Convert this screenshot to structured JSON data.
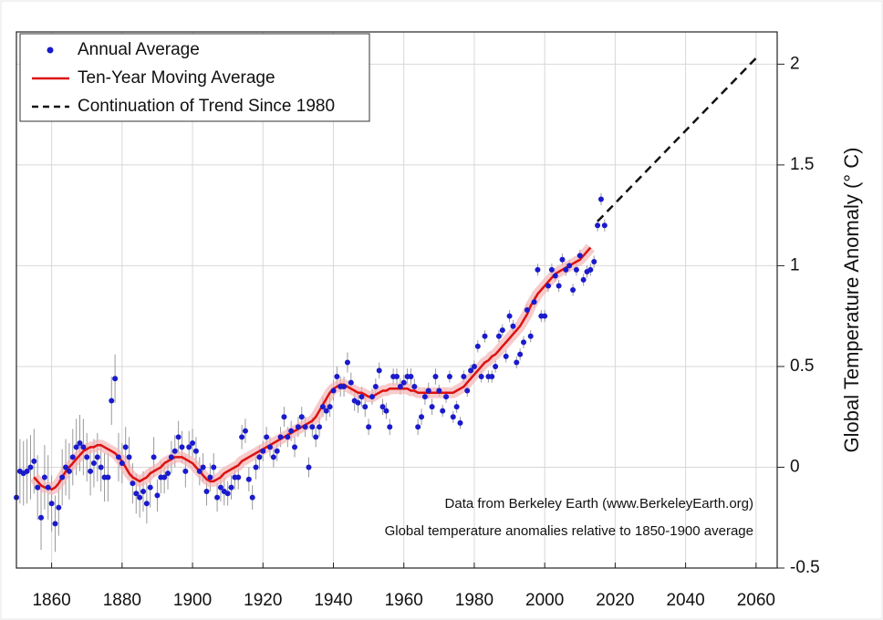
{
  "chart_data": {
    "type": "scatter",
    "title_note": null,
    "annotations": [
      "Data from Berkeley Earth (www.BerkeleyEarth.org)",
      "Global temperature anomalies relative to 1850-1900 average"
    ],
    "y_label": "Global Temperature Anomaly (° C)",
    "xlim": [
      1850,
      2066
    ],
    "ylim": [
      -0.5,
      2.16
    ],
    "xticks": [
      1860,
      1880,
      1900,
      1920,
      1940,
      1960,
      1980,
      2000,
      2020,
      2040,
      2060
    ],
    "yticks": [
      -0.5,
      0,
      0.5,
      1,
      1.5,
      2
    ],
    "grid": true,
    "legend": "upper left",
    "x": [
      1850,
      1851,
      1852,
      1853,
      1854,
      1855,
      1856,
      1857,
      1858,
      1859,
      1860,
      1861,
      1862,
      1863,
      1864,
      1865,
      1866,
      1867,
      1868,
      1869,
      1870,
      1871,
      1872,
      1873,
      1874,
      1875,
      1876,
      1877,
      1878,
      1879,
      1880,
      1881,
      1882,
      1883,
      1884,
      1885,
      1886,
      1887,
      1888,
      1889,
      1890,
      1891,
      1892,
      1893,
      1894,
      1895,
      1896,
      1897,
      1898,
      1899,
      1900,
      1901,
      1902,
      1903,
      1904,
      1905,
      1906,
      1907,
      1908,
      1909,
      1910,
      1911,
      1912,
      1913,
      1914,
      1915,
      1916,
      1917,
      1918,
      1919,
      1920,
      1921,
      1922,
      1923,
      1924,
      1925,
      1926,
      1927,
      1928,
      1929,
      1930,
      1931,
      1932,
      1933,
      1934,
      1935,
      1936,
      1937,
      1938,
      1939,
      1940,
      1941,
      1942,
      1943,
      1944,
      1945,
      1946,
      1947,
      1948,
      1949,
      1950,
      1951,
      1952,
      1953,
      1954,
      1955,
      1956,
      1957,
      1958,
      1959,
      1960,
      1961,
      1962,
      1963,
      1964,
      1965,
      1966,
      1967,
      1968,
      1969,
      1970,
      1971,
      1972,
      1973,
      1974,
      1975,
      1976,
      1977,
      1978,
      1979,
      1980,
      1981,
      1982,
      1983,
      1984,
      1985,
      1986,
      1987,
      1988,
      1989,
      1990,
      1991,
      1992,
      1993,
      1994,
      1995,
      1996,
      1997,
      1998,
      1999,
      2000,
      2001,
      2002,
      2003,
      2004,
      2005,
      2006,
      2007,
      2008,
      2009,
      2010,
      2011,
      2012,
      2013,
      2014,
      2015,
      2016,
      2017
    ],
    "series": [
      {
        "name": "Annual Average",
        "color": "#1a1acc",
        "values": [
          -0.15,
          -0.02,
          -0.03,
          -0.02,
          0.0,
          0.03,
          -0.1,
          -0.25,
          -0.05,
          -0.1,
          -0.18,
          -0.28,
          -0.2,
          -0.05,
          0.0,
          -0.02,
          0.05,
          0.1,
          0.12,
          0.1,
          0.05,
          -0.02,
          0.02,
          0.05,
          0.0,
          -0.05,
          -0.05,
          0.33,
          0.44,
          0.05,
          0.02,
          0.1,
          0.05,
          -0.08,
          -0.13,
          -0.15,
          -0.12,
          -0.18,
          -0.1,
          0.05,
          -0.14,
          -0.05,
          -0.05,
          -0.03,
          0.05,
          0.08,
          0.15,
          0.1,
          -0.02,
          0.1,
          0.12,
          0.08,
          -0.02,
          0.0,
          -0.12,
          -0.05,
          0.0,
          -0.15,
          -0.1,
          -0.12,
          -0.13,
          -0.1,
          -0.05,
          -0.05,
          0.15,
          0.18,
          -0.06,
          -0.15,
          0.0,
          0.05,
          0.08,
          0.15,
          0.1,
          0.05,
          0.08,
          0.15,
          0.25,
          0.15,
          0.18,
          0.1,
          0.2,
          0.25,
          0.2,
          0.0,
          0.2,
          0.15,
          0.2,
          0.3,
          0.28,
          0.3,
          0.38,
          0.45,
          0.4,
          0.4,
          0.52,
          0.42,
          0.33,
          0.32,
          0.35,
          0.3,
          0.2,
          0.35,
          0.4,
          0.48,
          0.3,
          0.28,
          0.2,
          0.45,
          0.45,
          0.4,
          0.42,
          0.45,
          0.45,
          0.4,
          0.2,
          0.25,
          0.35,
          0.38,
          0.3,
          0.45,
          0.38,
          0.28,
          0.35,
          0.45,
          0.25,
          0.3,
          0.22,
          0.45,
          0.38,
          0.48,
          0.5,
          0.6,
          0.45,
          0.65,
          0.45,
          0.45,
          0.5,
          0.65,
          0.68,
          0.55,
          0.75,
          0.7,
          0.52,
          0.56,
          0.62,
          0.78,
          0.65,
          0.82,
          0.98,
          0.75,
          0.75,
          0.9,
          0.98,
          0.95,
          0.9,
          1.03,
          0.98,
          1.0,
          0.88,
          0.98,
          1.05,
          0.93,
          0.97,
          0.98,
          1.02,
          1.2,
          1.33,
          1.2
        ],
        "errors": [
          0.16,
          0.16,
          0.16,
          0.16,
          0.16,
          0.16,
          0.16,
          0.16,
          0.16,
          0.16,
          0.14,
          0.14,
          0.14,
          0.14,
          0.14,
          0.14,
          0.14,
          0.14,
          0.14,
          0.14,
          0.12,
          0.12,
          0.12,
          0.12,
          0.12,
          0.12,
          0.12,
          0.12,
          0.12,
          0.12,
          0.1,
          0.1,
          0.1,
          0.1,
          0.1,
          0.1,
          0.1,
          0.1,
          0.1,
          0.1,
          0.08,
          0.08,
          0.08,
          0.08,
          0.08,
          0.08,
          0.08,
          0.08,
          0.08,
          0.08,
          0.07,
          0.07,
          0.07,
          0.07,
          0.07,
          0.07,
          0.07,
          0.07,
          0.07,
          0.07,
          0.06,
          0.06,
          0.06,
          0.06,
          0.06,
          0.06,
          0.06,
          0.06,
          0.06,
          0.06,
          0.05,
          0.05,
          0.05,
          0.05,
          0.05,
          0.05,
          0.05,
          0.05,
          0.05,
          0.05,
          0.05,
          0.05,
          0.05,
          0.05,
          0.05,
          0.05,
          0.05,
          0.05,
          0.05,
          0.05,
          0.05,
          0.05,
          0.05,
          0.05,
          0.05,
          0.05,
          0.05,
          0.05,
          0.05,
          0.05,
          0.04,
          0.04,
          0.04,
          0.04,
          0.04,
          0.04,
          0.04,
          0.04,
          0.04,
          0.04,
          0.04,
          0.04,
          0.04,
          0.04,
          0.04,
          0.04,
          0.04,
          0.04,
          0.04,
          0.04,
          0.03,
          0.03,
          0.03,
          0.03,
          0.03,
          0.03,
          0.03,
          0.03,
          0.03,
          0.03,
          0.03,
          0.03,
          0.03,
          0.03,
          0.03,
          0.03,
          0.03,
          0.03,
          0.03,
          0.03,
          0.03,
          0.03,
          0.03,
          0.03,
          0.03,
          0.03,
          0.03,
          0.03,
          0.03,
          0.03,
          0.03,
          0.03,
          0.03,
          0.03,
          0.03,
          0.03,
          0.03,
          0.03,
          0.03,
          0.03,
          0.03,
          0.03,
          0.03,
          0.03,
          0.03,
          0.03,
          0.03,
          0.03
        ]
      },
      {
        "name": "Ten-Year Moving Average",
        "color": "#dd1111",
        "values": [
          null,
          null,
          null,
          null,
          null,
          -0.05,
          -0.07,
          -0.09,
          -0.1,
          -0.1,
          -0.11,
          -0.1,
          -0.08,
          -0.05,
          -0.02,
          0.0,
          0.02,
          0.04,
          0.06,
          0.08,
          0.09,
          0.1,
          0.1,
          0.11,
          0.11,
          0.1,
          0.09,
          0.08,
          0.07,
          0.05,
          0.03,
          0.0,
          -0.03,
          -0.05,
          -0.06,
          -0.07,
          -0.06,
          -0.05,
          -0.03,
          -0.02,
          -0.01,
          0.0,
          0.02,
          0.03,
          0.04,
          0.05,
          0.05,
          0.05,
          0.04,
          0.03,
          0.02,
          0.0,
          -0.02,
          -0.04,
          -0.06,
          -0.07,
          -0.07,
          -0.06,
          -0.05,
          -0.03,
          -0.02,
          -0.01,
          0.0,
          0.01,
          0.03,
          0.04,
          0.05,
          0.06,
          0.07,
          0.08,
          0.09,
          0.1,
          0.11,
          0.12,
          0.13,
          0.14,
          0.15,
          0.16,
          0.17,
          0.18,
          0.19,
          0.2,
          0.21,
          0.22,
          0.23,
          0.25,
          0.28,
          0.31,
          0.34,
          0.37,
          0.39,
          0.4,
          0.41,
          0.41,
          0.4,
          0.39,
          0.38,
          0.37,
          0.37,
          0.36,
          0.35,
          0.35,
          0.36,
          0.37,
          0.38,
          0.38,
          0.39,
          0.39,
          0.39,
          0.39,
          0.39,
          0.39,
          0.38,
          0.38,
          0.37,
          0.37,
          0.37,
          0.37,
          0.37,
          0.37,
          0.37,
          0.37,
          0.37,
          0.37,
          0.37,
          0.38,
          0.39,
          0.4,
          0.42,
          0.44,
          0.46,
          0.48,
          0.5,
          0.52,
          0.53,
          0.55,
          0.56,
          0.58,
          0.6,
          0.62,
          0.64,
          0.66,
          0.68,
          0.7,
          0.73,
          0.76,
          0.8,
          0.83,
          0.86,
          0.88,
          0.9,
          0.92,
          0.94,
          0.96,
          0.97,
          0.98,
          0.99,
          1.0,
          1.01,
          1.02,
          1.03,
          1.05,
          1.07,
          1.09,
          null,
          null,
          null,
          null
        ]
      },
      {
        "name": "Continuation of Trend Since 1980",
        "color": "#111111",
        "x": [
          2015,
          2060
        ],
        "values": [
          1.22,
          2.03
        ]
      }
    ]
  }
}
